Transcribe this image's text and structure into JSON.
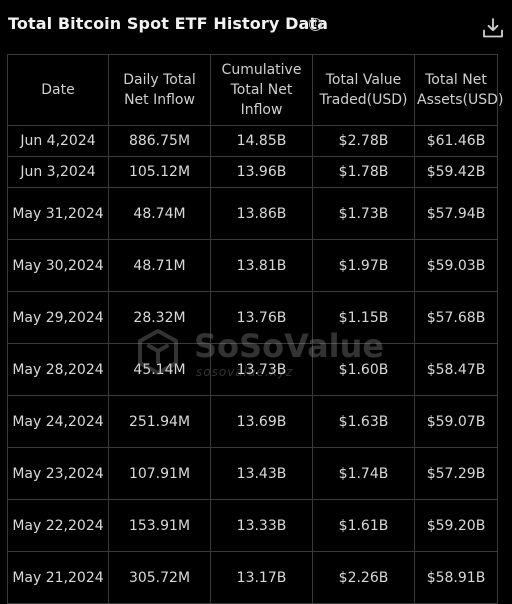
{
  "header": {
    "title": "Total Bitcoin Spot ETF History Data",
    "info_icon": "info-icon",
    "download_icon": "download-icon"
  },
  "table": {
    "columns": [
      "Date",
      "Daily Total Net Inflow",
      "Cumulative Total Net Inflow",
      "Total Value Traded(USD)",
      "Total Net Assets(USD)"
    ],
    "rows": [
      {
        "date": "Jun 4,2024",
        "daily": "886.75M",
        "cumulative": "14.85B",
        "traded": "$2.78B",
        "assets": "$61.46B"
      },
      {
        "date": "Jun 3,2024",
        "daily": "105.12M",
        "cumulative": "13.96B",
        "traded": "$1.78B",
        "assets": "$59.42B"
      },
      {
        "date": "May 31,2024",
        "daily": "48.74M",
        "cumulative": "13.86B",
        "traded": "$1.73B",
        "assets": "$57.94B"
      },
      {
        "date": "May 30,2024",
        "daily": "48.71M",
        "cumulative": "13.81B",
        "traded": "$1.97B",
        "assets": "$59.03B"
      },
      {
        "date": "May 29,2024",
        "daily": "28.32M",
        "cumulative": "13.76B",
        "traded": "$1.15B",
        "assets": "$57.68B"
      },
      {
        "date": "May 28,2024",
        "daily": "45.14M",
        "cumulative": "13.73B",
        "traded": "$1.60B",
        "assets": "$58.47B"
      },
      {
        "date": "May 24,2024",
        "daily": "251.94M",
        "cumulative": "13.69B",
        "traded": "$1.63B",
        "assets": "$59.07B"
      },
      {
        "date": "May 23,2024",
        "daily": "107.91M",
        "cumulative": "13.43B",
        "traded": "$1.74B",
        "assets": "$57.29B"
      },
      {
        "date": "May 22,2024",
        "daily": "153.91M",
        "cumulative": "13.33B",
        "traded": "$1.61B",
        "assets": "$59.20B"
      },
      {
        "date": "May 21,2024",
        "daily": "305.72M",
        "cumulative": "13.17B",
        "traded": "$2.26B",
        "assets": "$58.91B"
      }
    ]
  },
  "watermark": {
    "brand": "SoSoValue",
    "domain": "sosovalue.xyz"
  },
  "colors": {
    "background": "#000000",
    "inflow_positive": "#5fd069",
    "text": "#d9d9d9",
    "border": "#3a3a3a"
  }
}
